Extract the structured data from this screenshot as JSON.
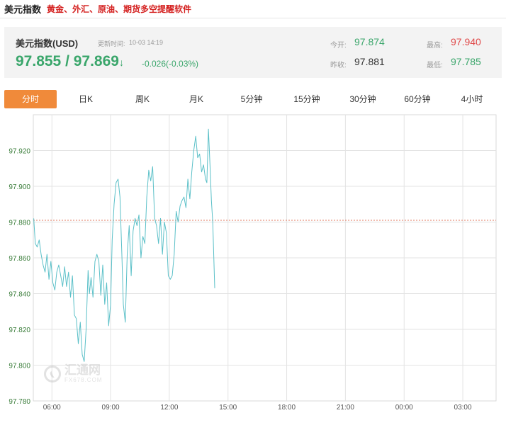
{
  "header": {
    "title": "美元指数",
    "subtitle": "黄金、外汇、原油、期货多空提醒软件"
  },
  "quote": {
    "name": "美元指数(USD)",
    "update_label": "更新时间:",
    "update_time": "10-03 14:19",
    "price": "97.855 / 97.869",
    "arrow": "↓",
    "change": "-0.026(-0.03%)",
    "open_label": "今开:",
    "open": "97.874",
    "prev_close_label": "昨收:",
    "prev_close": "97.881",
    "high_label": "最高:",
    "high": "97.940",
    "low_label": "最低:",
    "low": "97.785",
    "colors": {
      "up": "#e04a4a",
      "down": "#3aa66b"
    }
  },
  "tabs": [
    "分时",
    "日K",
    "周K",
    "月K",
    "5分钟",
    "15分钟",
    "30分钟",
    "60分钟",
    "4小时"
  ],
  "active_tab": "分时",
  "watermark": {
    "big": "汇通网",
    "small": "FX678.COM"
  },
  "chart_data": {
    "type": "line",
    "title": "",
    "xlabel": "",
    "ylabel": "",
    "ylim": [
      97.78,
      97.94
    ],
    "y_ticks": [
      97.78,
      97.8,
      97.82,
      97.84,
      97.86,
      97.88,
      97.9,
      97.92
    ],
    "y_tick_labels": [
      "97.780",
      "97.800",
      "97.820",
      "97.840",
      "97.860",
      "97.880",
      "97.900",
      "97.920"
    ],
    "x_tick_labels": [
      "06:00",
      "09:00",
      "12:00",
      "15:00",
      "18:00",
      "21:00",
      "00:00",
      "03:00"
    ],
    "x_tick_hours": [
      6,
      9,
      12,
      15,
      18,
      21,
      24,
      27
    ],
    "x_range_hours": [
      5.05,
      28.7
    ],
    "reference_line": {
      "value": 97.881,
      "color": "#e07a5f",
      "style": "dashed"
    },
    "line_color": "#5bc0c8",
    "grid": true,
    "series": [
      {
        "x": [
          5.07,
          5.15,
          5.25,
          5.35,
          5.45,
          5.55,
          5.65,
          5.75,
          5.85,
          5.95,
          6.05,
          6.15,
          6.25,
          6.35,
          6.45,
          6.55,
          6.65,
          6.75,
          6.85,
          6.95,
          7.05,
          7.15,
          7.25,
          7.35,
          7.45,
          7.55,
          7.65,
          7.75,
          7.85,
          7.92,
          8.0,
          8.1,
          8.2,
          8.3,
          8.4,
          8.5,
          8.6,
          8.7,
          8.8,
          8.9,
          9.0,
          9.08,
          9.18,
          9.28,
          9.38,
          9.48,
          9.58,
          9.65,
          9.75,
          9.85,
          9.95,
          10.05,
          10.15,
          10.25,
          10.35,
          10.45,
          10.55,
          10.65,
          10.75,
          10.85,
          10.95,
          11.05,
          11.15,
          11.25,
          11.35,
          11.45,
          11.55,
          11.65,
          11.75,
          11.85,
          11.95,
          12.05,
          12.15,
          12.25,
          12.35,
          12.45,
          12.55,
          12.65,
          12.75,
          12.85,
          12.95,
          13.05,
          13.15,
          13.25,
          13.35,
          13.45,
          13.55,
          13.65,
          13.75,
          13.85,
          13.92,
          14.0,
          14.08,
          14.15,
          14.22,
          14.32
        ],
        "y": [
          97.882,
          97.868,
          97.866,
          97.87,
          97.862,
          97.856,
          97.852,
          97.862,
          97.848,
          97.858,
          97.846,
          97.842,
          97.852,
          97.856,
          97.85,
          97.844,
          97.855,
          97.844,
          97.852,
          97.838,
          97.85,
          97.828,
          97.826,
          97.812,
          97.824,
          97.806,
          97.802,
          97.82,
          97.853,
          97.84,
          97.849,
          97.838,
          97.858,
          97.862,
          97.858,
          97.839,
          97.856,
          97.834,
          97.846,
          97.822,
          97.834,
          97.87,
          97.89,
          97.902,
          97.904,
          97.894,
          97.86,
          97.834,
          97.824,
          97.862,
          97.878,
          97.85,
          97.875,
          97.882,
          97.878,
          97.884,
          97.86,
          97.872,
          97.868,
          97.894,
          97.909,
          97.903,
          97.911,
          97.882,
          97.878,
          97.868,
          97.882,
          97.862,
          97.88,
          97.874,
          97.85,
          97.848,
          97.85,
          97.862,
          97.886,
          97.88,
          97.889,
          97.892,
          97.894,
          97.888,
          97.904,
          97.893,
          97.908,
          97.92,
          97.928,
          97.916,
          97.918,
          97.908,
          97.912,
          97.904,
          97.902,
          97.932,
          97.912,
          97.892,
          97.88,
          97.843
        ]
      }
    ]
  }
}
